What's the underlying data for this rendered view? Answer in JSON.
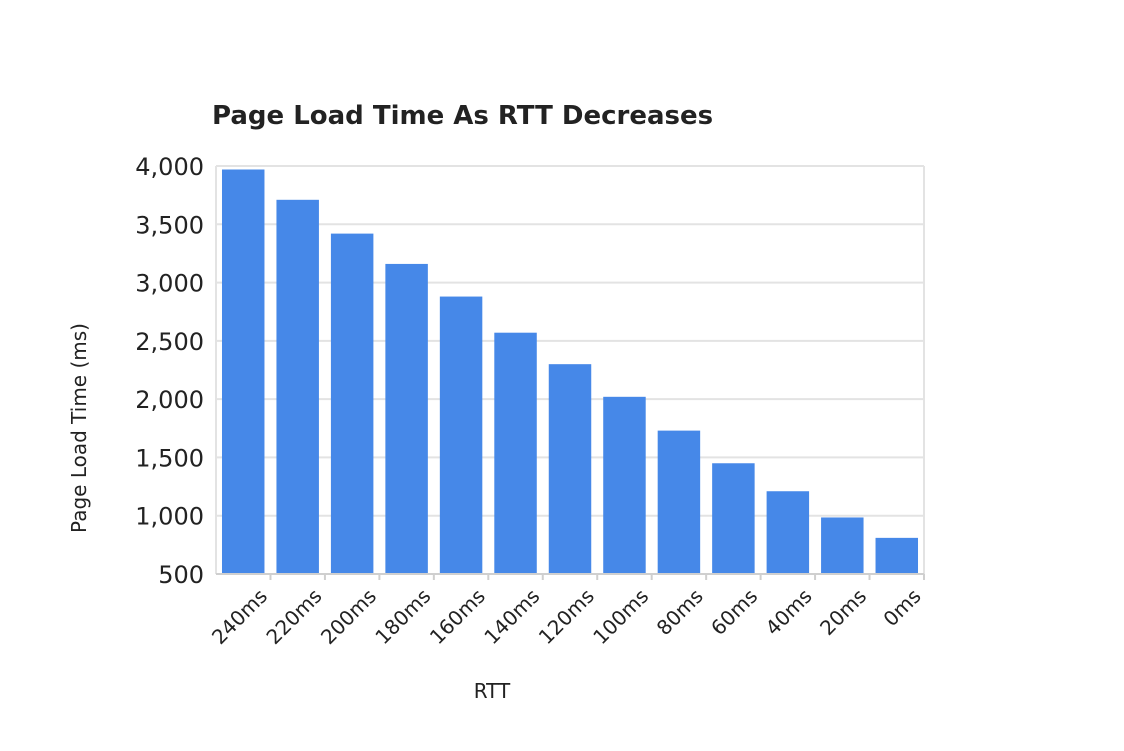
{
  "chart_data": {
    "type": "bar",
    "title": "Page Load Time As RTT Decreases",
    "xlabel": "RTT",
    "ylabel": "Page Load Time (ms)",
    "categories": [
      "240ms",
      "220ms",
      "200ms",
      "180ms",
      "160ms",
      "140ms",
      "120ms",
      "100ms",
      "80ms",
      "60ms",
      "40ms",
      "20ms",
      "0ms"
    ],
    "values": [
      3970,
      3710,
      3420,
      3160,
      2880,
      2570,
      2300,
      2020,
      1730,
      1450,
      1210,
      985,
      810
    ],
    "ylim": [
      500,
      4000
    ],
    "yticks": [
      500,
      1000,
      1500,
      2000,
      2500,
      3000,
      3500,
      4000
    ],
    "ytick_labels": [
      "500",
      "1,000",
      "1,500",
      "2,000",
      "2,500",
      "3,000",
      "3,500",
      "4,000"
    ],
    "grid": true,
    "legend": "none",
    "bar_color": "#4688e8",
    "grid_color": "#e3e3e3"
  }
}
